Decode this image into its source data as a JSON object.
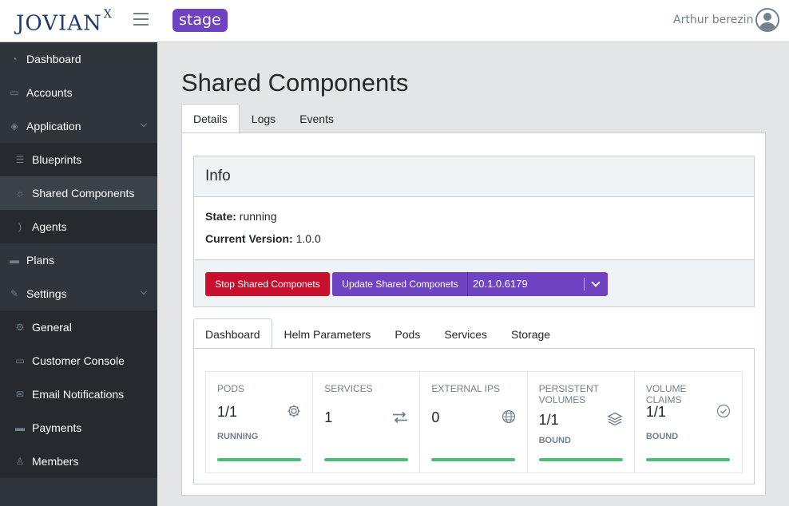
{
  "header": {
    "logo": "JOVIAN",
    "logo_sup": "X",
    "environment": "stage",
    "user_name": "Arthur berezin"
  },
  "sidebar": {
    "items": [
      {
        "label": "Dashboard",
        "icon": "speedometer-icon"
      },
      {
        "label": "Accounts",
        "icon": "briefcase-icon"
      },
      {
        "label": "Application",
        "icon": "layers-icon",
        "expandable": true
      },
      {
        "label": "Blueprints",
        "icon": "list-icon"
      },
      {
        "label": "Shared Components",
        "icon": "sun-icon",
        "active": true
      },
      {
        "label": "Agents",
        "icon": "rss-icon"
      },
      {
        "label": "Plans",
        "icon": "credit-card-icon"
      },
      {
        "label": "Settings",
        "icon": "wrench-icon",
        "expandable": true
      },
      {
        "label": "General",
        "icon": "gear-icon"
      },
      {
        "label": "Customer Console",
        "icon": "monitor-icon"
      },
      {
        "label": "Email Notifications",
        "icon": "envelope-icon"
      },
      {
        "label": "Payments",
        "icon": "payment-card-icon"
      },
      {
        "label": "Members",
        "icon": "user-icon"
      }
    ]
  },
  "main": {
    "title": "Shared Components",
    "tabs": [
      {
        "label": "Details",
        "active": true
      },
      {
        "label": "Logs"
      },
      {
        "label": "Events"
      }
    ],
    "info": {
      "header": "Info",
      "state_label": "State:",
      "state_value": "running",
      "version_label": "Current Version:",
      "version_value": "1.0.0",
      "stop_button": "Stop Shared Componets",
      "update_button": "Update Shared Componets",
      "selected_version": "20.1.0.6179"
    },
    "inner_tabs": [
      {
        "label": "Dashboard",
        "active": true
      },
      {
        "label": "Helm Parameters"
      },
      {
        "label": "Pods"
      },
      {
        "label": "Services"
      },
      {
        "label": "Storage"
      }
    ],
    "stats": [
      {
        "label": "PODS",
        "value": "1/1",
        "sub": "RUNNING",
        "icon": "gear-icon",
        "progress": 1.0
      },
      {
        "label": "SERVICES",
        "value": "1",
        "sub": "",
        "icon": "exchange-icon",
        "progress": 1.0
      },
      {
        "label": "EXTERNAL IPS",
        "value": "0",
        "sub": "",
        "icon": "globe-icon",
        "progress": 1.0
      },
      {
        "label": "PERSISTENT VOLUMES",
        "value": "1/1",
        "sub": "BOUND",
        "icon": "layers-icon",
        "progress": 1.0
      },
      {
        "label": "VOLUME CLAIMS",
        "value": "1/1",
        "sub": "BOUND",
        "icon": "check-circle-icon",
        "progress": 1.0
      }
    ]
  },
  "colors": {
    "sidebar_bg": "#2f353a",
    "accent_purple": "#6f42c1",
    "danger_red": "#c8102e",
    "success_green": "#4dbd74"
  }
}
